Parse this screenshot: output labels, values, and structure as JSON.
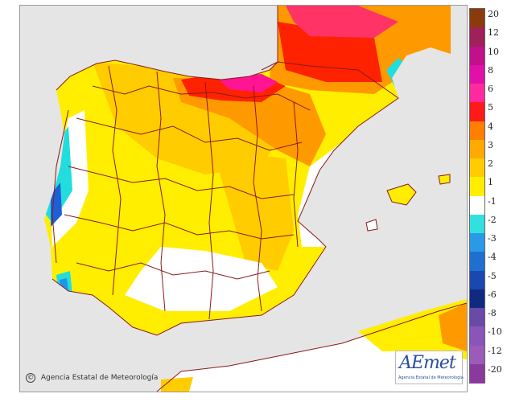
{
  "map": {
    "colors": {
      "sea": "#e5e5e5",
      "near_zero": "#ffffff",
      "plus_1_2": "#ffee00",
      "plus_2_3": "#ffcc00",
      "plus_3_4": "#ff9900",
      "plus_4_5": "#ff2200",
      "plus_5_6": "#ff3366",
      "plus_6_8": "#ff1493",
      "minus_1_2": "#22dddd",
      "minus_2_3": "#1f96e6",
      "minus_3_4": "#1f5fd6",
      "minus_4_5": "#1a3aaa",
      "border": "#8b1a1a"
    },
    "regions_shown": [
      "Iberian Peninsula",
      "Balearic Islands",
      "Southern France",
      "Northern Morocco/Algeria"
    ]
  },
  "legend": {
    "ticks": [
      "20",
      "12",
      "10",
      "8",
      "6",
      "5",
      "4",
      "3",
      "2",
      "1",
      "-1",
      "-2",
      "-3",
      "-4",
      "-5",
      "-6",
      "-8",
      "-10",
      "-12",
      "-20"
    ],
    "colors": [
      "#8b3a0e",
      "#a0205a",
      "#c0108c",
      "#e010a8",
      "#ff2aa0",
      "#ff1a1a",
      "#ff7f00",
      "#ffaa00",
      "#ffcc00",
      "#ffee00",
      "#ffffff",
      "#33e0e0",
      "#2a9ae6",
      "#1f6fd0",
      "#1a47b0",
      "#102a80",
      "#6a4aa8",
      "#8a55b8",
      "#9a5cb8",
      "#8a3a9c"
    ]
  },
  "credit": {
    "symbol": "©",
    "text": "Agencia Estatal de Meteorología"
  },
  "logo": {
    "wordmark": "AEmet",
    "subtitle": "Agencia Estatal de Meteorología"
  }
}
